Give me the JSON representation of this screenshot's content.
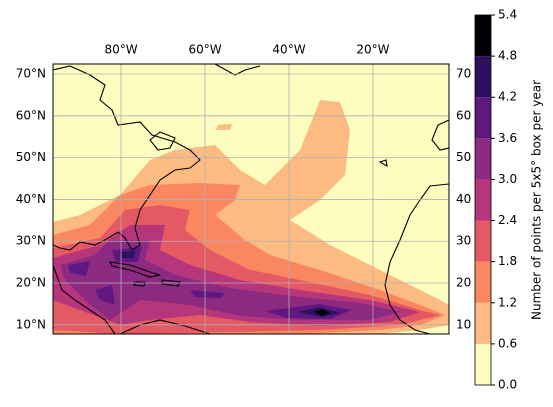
{
  "chart_data": {
    "type": "contour",
    "xlim": [
      -96.2,
      -1.9
    ],
    "ylim": [
      7.8,
      72.4
    ],
    "y2lim": [
      7.8,
      72.4
    ],
    "xticks": [
      {
        "value": -80,
        "label": "80°W"
      },
      {
        "value": -60,
        "label": "60°W"
      },
      {
        "value": -40,
        "label": "40°W"
      },
      {
        "value": -20,
        "label": "20°W"
      }
    ],
    "yticks": [
      {
        "value": 10,
        "label": "10°N"
      },
      {
        "value": 20,
        "label": "20°N"
      },
      {
        "value": 30,
        "label": "30°N"
      },
      {
        "value": 40,
        "label": "40°N"
      },
      {
        "value": 50,
        "label": "50°N"
      },
      {
        "value": 60,
        "label": "60°N"
      },
      {
        "value": 70,
        "label": "70°N"
      }
    ],
    "y2ticks": [
      10,
      20,
      30,
      40,
      50,
      60,
      70
    ],
    "grid": true,
    "colorbar": {
      "label": "Number of points per 5x5° box per year",
      "ticks": [
        {
          "value": 0,
          "label": "0.0"
        },
        0.6,
        {
          "value": 1.2,
          "label": "1.2"
        },
        {
          "value": 1.8,
          "label": "1.8"
        },
        {
          "value": 2.4,
          "label": "2.4"
        },
        {
          "value": 3,
          "label": "3.0"
        },
        {
          "value": 3.6,
          "label": "3.6"
        },
        {
          "value": 4.2,
          "label": "4.2"
        },
        {
          "value": 4.8,
          "label": "4.8"
        },
        {
          "value": 5.4,
          "label": "5.4"
        }
      ],
      "colors": [
        "#fcfdbf",
        "#febb81",
        "#fb8761",
        "#e55964",
        "#b5367a",
        "#8c2981",
        "#5f187f",
        "#2c115f",
        "#000004"
      ]
    }
  }
}
